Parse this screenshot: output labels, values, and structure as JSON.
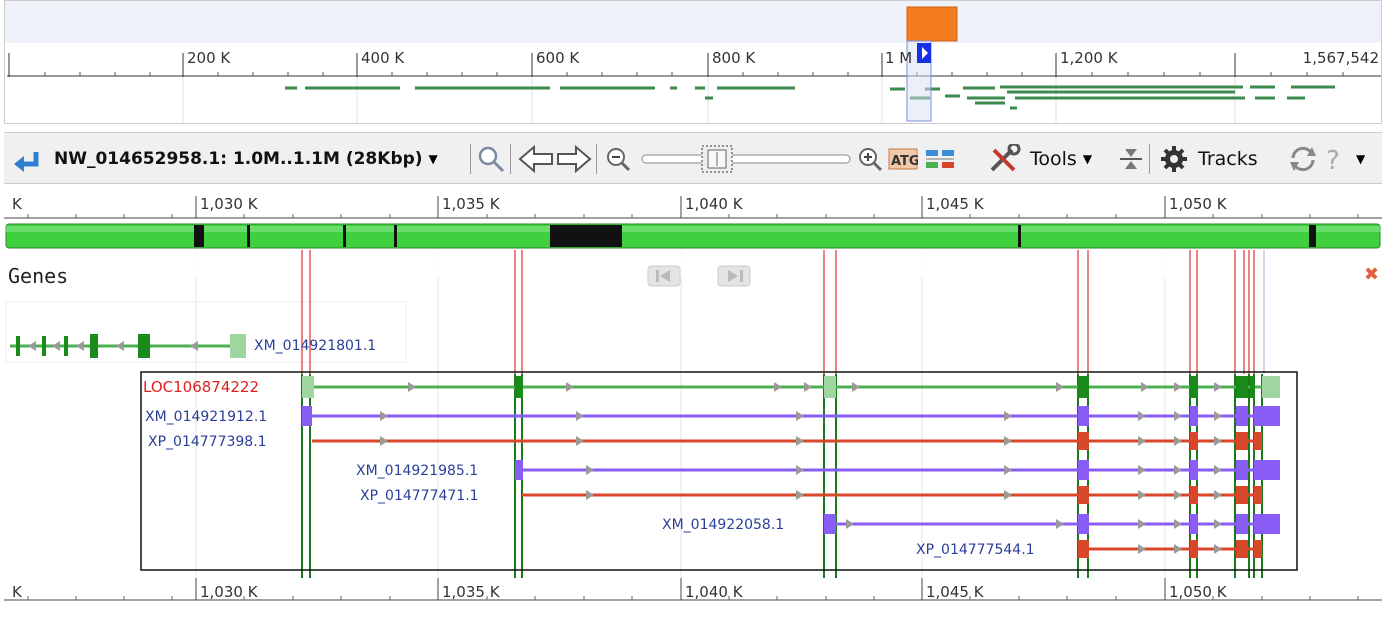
{
  "overview": {
    "ticks": [
      "200 K",
      "400 K",
      "600 K",
      "800 K",
      "1 M",
      "1,200 K"
    ],
    "end_label": "1,567,542"
  },
  "toolbar": {
    "location": "NW_014652958.1: 1.0M..1.1M (28Kbp)",
    "tools_label": "Tools",
    "tracks_label": "Tracks"
  },
  "ruler": {
    "left_stub": "K",
    "ticks": [
      "1,030 K",
      "1,035 K",
      "1,040 K",
      "1,045 K",
      "1,050 K"
    ]
  },
  "track": {
    "name": "Genes"
  },
  "features": {
    "outer_transcript": "XM_014921801.1",
    "gene": "LOC106874222",
    "transcripts": [
      "XM_014921912.1",
      "XP_014777398.1",
      "XM_014921985.1",
      "XP_014777471.1",
      "XM_014922058.1",
      "XP_014777544.1"
    ]
  },
  "colors": {
    "gene_green": "#4caf50",
    "mrna_purple": "#8a5cf6",
    "cds_red": "#d9472b",
    "exon_green": "#1a8a1a",
    "highlight_orange": "#f57c1f",
    "label_blue": "#2a3f9a",
    "label_red": "#e02020"
  }
}
